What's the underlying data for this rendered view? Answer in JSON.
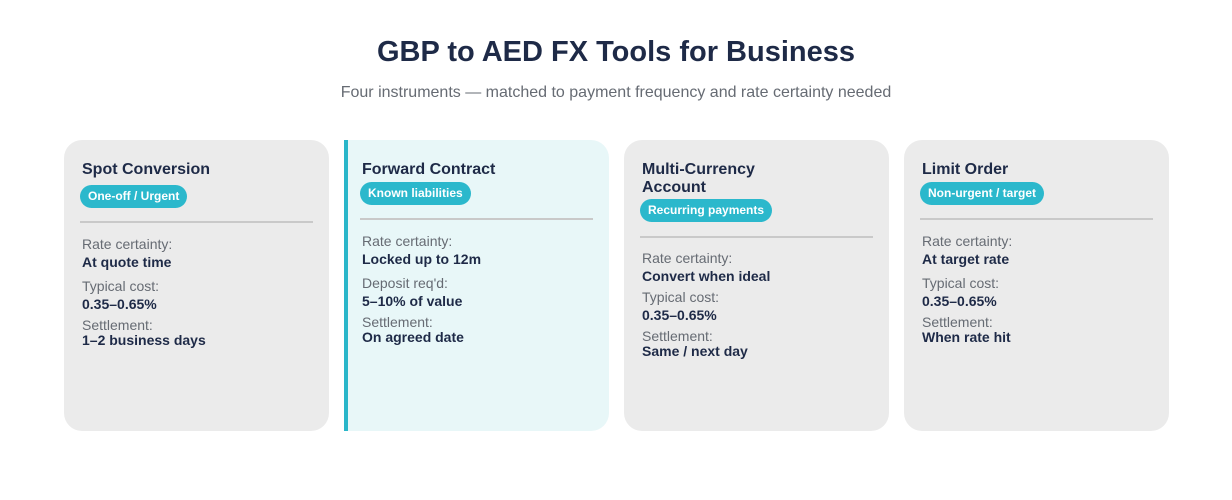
{
  "header": {
    "title": "GBP to AED FX Tools for Business",
    "subtitle": "Four instruments — matched to payment frequency and rate certainty needed"
  },
  "colors": {
    "accent": "#29b6c9",
    "badge": "#2bb8cc",
    "card_bg": "#ebebeb",
    "highlight_bg": "#e8f7f8",
    "title_text": "#1e2a47",
    "muted_text": "#666b73"
  },
  "cards": [
    {
      "title": "Spot Conversion",
      "badge": "One-off / Urgent",
      "fields": [
        {
          "label": "Rate certainty:",
          "value": "At quote time"
        },
        {
          "label": "Typical cost:",
          "value": "0.35–0.65%"
        },
        {
          "label": "Settlement:",
          "value": "1–2 business days"
        }
      ]
    },
    {
      "title": "Forward Contract",
      "badge": "Known liabilities",
      "highlighted": true,
      "fields": [
        {
          "label": "Rate certainty:",
          "value": "Locked up to 12m"
        },
        {
          "label": "Deposit req'd:",
          "value": "5–10% of value"
        },
        {
          "label": "Settlement:",
          "value": "On agreed date"
        }
      ]
    },
    {
      "title": "Multi-Currency Account",
      "badge": "Recurring payments",
      "fields": [
        {
          "label": "Rate certainty:",
          "value": "Convert when ideal"
        },
        {
          "label": "Typical cost:",
          "value": "0.35–0.65%"
        },
        {
          "label": "Settlement:",
          "value": "Same / next day"
        }
      ]
    },
    {
      "title": "Limit Order",
      "badge": "Non-urgent / target",
      "fields": [
        {
          "label": "Rate certainty:",
          "value": "At target rate"
        },
        {
          "label": "Typical cost:",
          "value": "0.35–0.65%"
        },
        {
          "label": "Settlement:",
          "value": "When rate hit"
        }
      ]
    }
  ]
}
